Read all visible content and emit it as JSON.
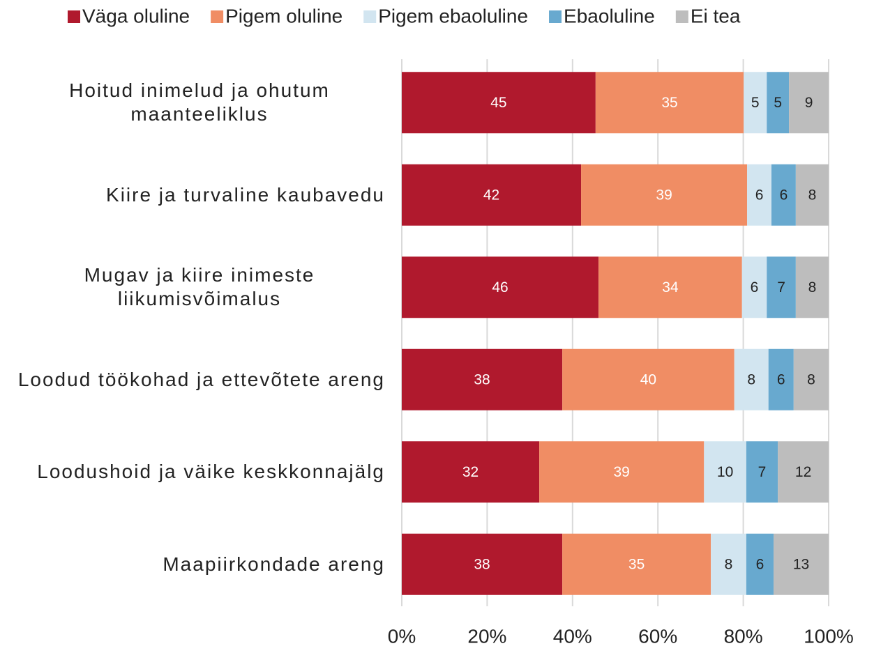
{
  "chart_data": {
    "type": "stacked-bar-horizontal",
    "categories": [
      "Hoitud inimelud ja ohutum maanteeliklus",
      "Kiire ja turvaline kaubavedu",
      "Mugav ja kiire inimeste liikumisvõimalus",
      "Loodud töökohad ja ettevõtete areng",
      "Loodushoid ja väike keskkonnajälg",
      "Maapiirkondade areng"
    ],
    "series": [
      {
        "name": "Väga oluline",
        "color": "#b0192d",
        "values": [
          45.4,
          42.0,
          46.1,
          37.6,
          32.2,
          37.6
        ],
        "value_labels": [
          "45",
          "42",
          "46",
          "38",
          "32",
          "38"
        ]
      },
      {
        "name": "Pigem oluline",
        "color": "#f08d64",
        "values": [
          34.7,
          38.9,
          33.6,
          40.3,
          38.6,
          34.8
        ],
        "value_labels": [
          "35",
          "39",
          "34",
          "40",
          "39",
          "35"
        ]
      },
      {
        "name": "Pigem ebaoluline",
        "color": "#d2e5f0",
        "values": [
          5.4,
          5.7,
          5.8,
          8.0,
          9.9,
          8.3
        ],
        "value_labels": [
          "5",
          "6",
          "6",
          "8",
          "10",
          "8"
        ]
      },
      {
        "name": "Ebaoluline",
        "color": "#68a9cf",
        "values": [
          5.2,
          5.7,
          6.8,
          5.9,
          7.4,
          6.4
        ],
        "value_labels": [
          "5",
          "6",
          "7",
          "6",
          "7",
          "6"
        ]
      },
      {
        "name": "Ei tea",
        "color": "#bdbdbd",
        "values": [
          9.3,
          7.7,
          7.7,
          8.2,
          11.9,
          12.9
        ],
        "value_labels": [
          "9",
          "8",
          "8",
          "8",
          "12",
          "13"
        ]
      }
    ],
    "xlim": [
      0,
      100
    ],
    "xticks": [
      {
        "value": 0,
        "label": "0%"
      },
      {
        "value": 20,
        "label": "20%"
      },
      {
        "value": 40,
        "label": "40%"
      },
      {
        "value": 60,
        "label": "60%"
      },
      {
        "value": 80,
        "label": "80%"
      },
      {
        "value": 100,
        "label": "100%"
      }
    ],
    "grid": true,
    "legend": "top"
  }
}
